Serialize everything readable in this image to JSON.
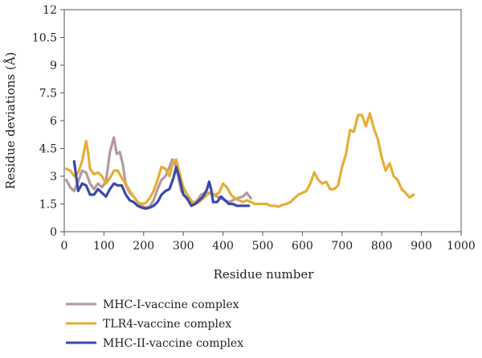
{
  "chart_data": {
    "type": "line",
    "xlabel": "Residue number",
    "ylabel": "Residue deviations (Å)",
    "xlim": [
      0,
      1000
    ],
    "ylim": [
      0,
      12
    ],
    "xticks": [
      "0",
      "100",
      "200",
      "300",
      "400",
      "500",
      "600",
      "700",
      "800",
      "900",
      "1000"
    ],
    "yticks": [
      "0",
      "1.5",
      "3",
      "4.5",
      "6",
      "7.5",
      "9",
      "10.5",
      "12"
    ],
    "grid": false,
    "legend_position": "bottom-left",
    "series": [
      {
        "name": "MHC-I-vaccine complex",
        "color": "#b49a9c",
        "x": [
          5,
          15,
          25,
          35,
          45,
          55,
          65,
          75,
          85,
          95,
          105,
          115,
          125,
          132,
          140,
          148,
          155,
          165,
          175,
          185,
          195,
          205,
          215,
          225,
          235,
          245,
          255,
          265,
          272,
          278,
          285,
          295,
          305,
          315,
          325,
          335,
          345,
          355,
          365,
          375,
          385,
          395,
          405,
          415,
          425,
          435,
          450,
          460,
          470
        ],
        "y": [
          2.8,
          2.4,
          2.2,
          2.7,
          3.3,
          3.2,
          2.6,
          2.3,
          2.6,
          2.4,
          2.7,
          4.3,
          5.1,
          4.2,
          4.3,
          3.6,
          2.5,
          2.1,
          1.9,
          1.6,
          1.4,
          1.3,
          1.35,
          1.7,
          2.3,
          2.8,
          3.0,
          3.5,
          3.9,
          3.8,
          3.2,
          2.2,
          1.9,
          1.6,
          1.5,
          1.7,
          2.0,
          2.1,
          2.1,
          2.0,
          1.9,
          1.8,
          1.7,
          1.6,
          1.7,
          1.8,
          1.9,
          2.1,
          1.8
        ]
      },
      {
        "name": "TLR4-vaccine complex",
        "color": "#e6ae38",
        "x": [
          5,
          15,
          25,
          35,
          45,
          55,
          60,
          65,
          75,
          85,
          95,
          105,
          115,
          125,
          135,
          145,
          155,
          165,
          175,
          185,
          195,
          205,
          215,
          225,
          235,
          245,
          255,
          265,
          275,
          282,
          290,
          300,
          310,
          320,
          330,
          340,
          350,
          360,
          370,
          380,
          390,
          400,
          410,
          420,
          430,
          440,
          450,
          460,
          470,
          480,
          490,
          500,
          510,
          520,
          530,
          540,
          550,
          560,
          570,
          580,
          590,
          600,
          610,
          620,
          630,
          640,
          650,
          660,
          670,
          680,
          690,
          700,
          710,
          720,
          730,
          740,
          750,
          760,
          770,
          780,
          790,
          800,
          810,
          820,
          830,
          840,
          850,
          860,
          870,
          880
        ],
        "y": [
          3.4,
          3.3,
          3.0,
          3.2,
          3.8,
          4.9,
          4.3,
          3.4,
          3.1,
          3.2,
          3.0,
          2.6,
          2.9,
          3.3,
          3.3,
          2.9,
          2.6,
          2.2,
          1.9,
          1.6,
          1.5,
          1.55,
          1.8,
          2.2,
          2.8,
          3.5,
          3.4,
          3.0,
          3.8,
          3.9,
          3.2,
          2.4,
          2.0,
          1.7,
          1.5,
          1.6,
          1.8,
          2.0,
          2.1,
          2.0,
          2.1,
          2.6,
          2.4,
          2.0,
          1.8,
          1.7,
          1.6,
          1.7,
          1.6,
          1.5,
          1.5,
          1.5,
          1.5,
          1.4,
          1.4,
          1.35,
          1.45,
          1.5,
          1.6,
          1.8,
          2.0,
          2.1,
          2.2,
          2.6,
          3.2,
          2.8,
          2.6,
          2.7,
          2.3,
          2.3,
          2.5,
          3.5,
          4.2,
          5.5,
          5.4,
          6.3,
          6.3,
          5.7,
          6.4,
          5.6,
          5.0,
          4.0,
          3.3,
          3.7,
          3.0,
          2.8,
          2.3,
          2.1,
          1.85,
          2.0
        ]
      },
      {
        "name": "MHC-II-vaccine complex",
        "color": "#3b4aa6",
        "x": [
          25,
          35,
          45,
          55,
          65,
          75,
          85,
          95,
          105,
          115,
          125,
          135,
          145,
          155,
          165,
          175,
          185,
          195,
          205,
          215,
          225,
          235,
          245,
          255,
          265,
          275,
          282,
          290,
          300,
          310,
          320,
          330,
          340,
          350,
          360,
          365,
          370,
          375,
          385,
          395,
          405,
          415,
          425,
          435,
          445,
          455,
          465
        ],
        "y": [
          3.8,
          2.2,
          2.6,
          2.5,
          2.0,
          2.0,
          2.3,
          2.1,
          1.9,
          2.3,
          2.6,
          2.5,
          2.5,
          2.0,
          1.7,
          1.6,
          1.4,
          1.3,
          1.25,
          1.3,
          1.4,
          1.6,
          2.0,
          2.2,
          2.3,
          2.9,
          3.5,
          2.9,
          2.0,
          1.8,
          1.4,
          1.5,
          1.7,
          1.9,
          2.3,
          2.7,
          2.3,
          1.6,
          1.6,
          1.9,
          1.7,
          1.5,
          1.5,
          1.4,
          1.4,
          1.4,
          1.4
        ]
      }
    ]
  }
}
